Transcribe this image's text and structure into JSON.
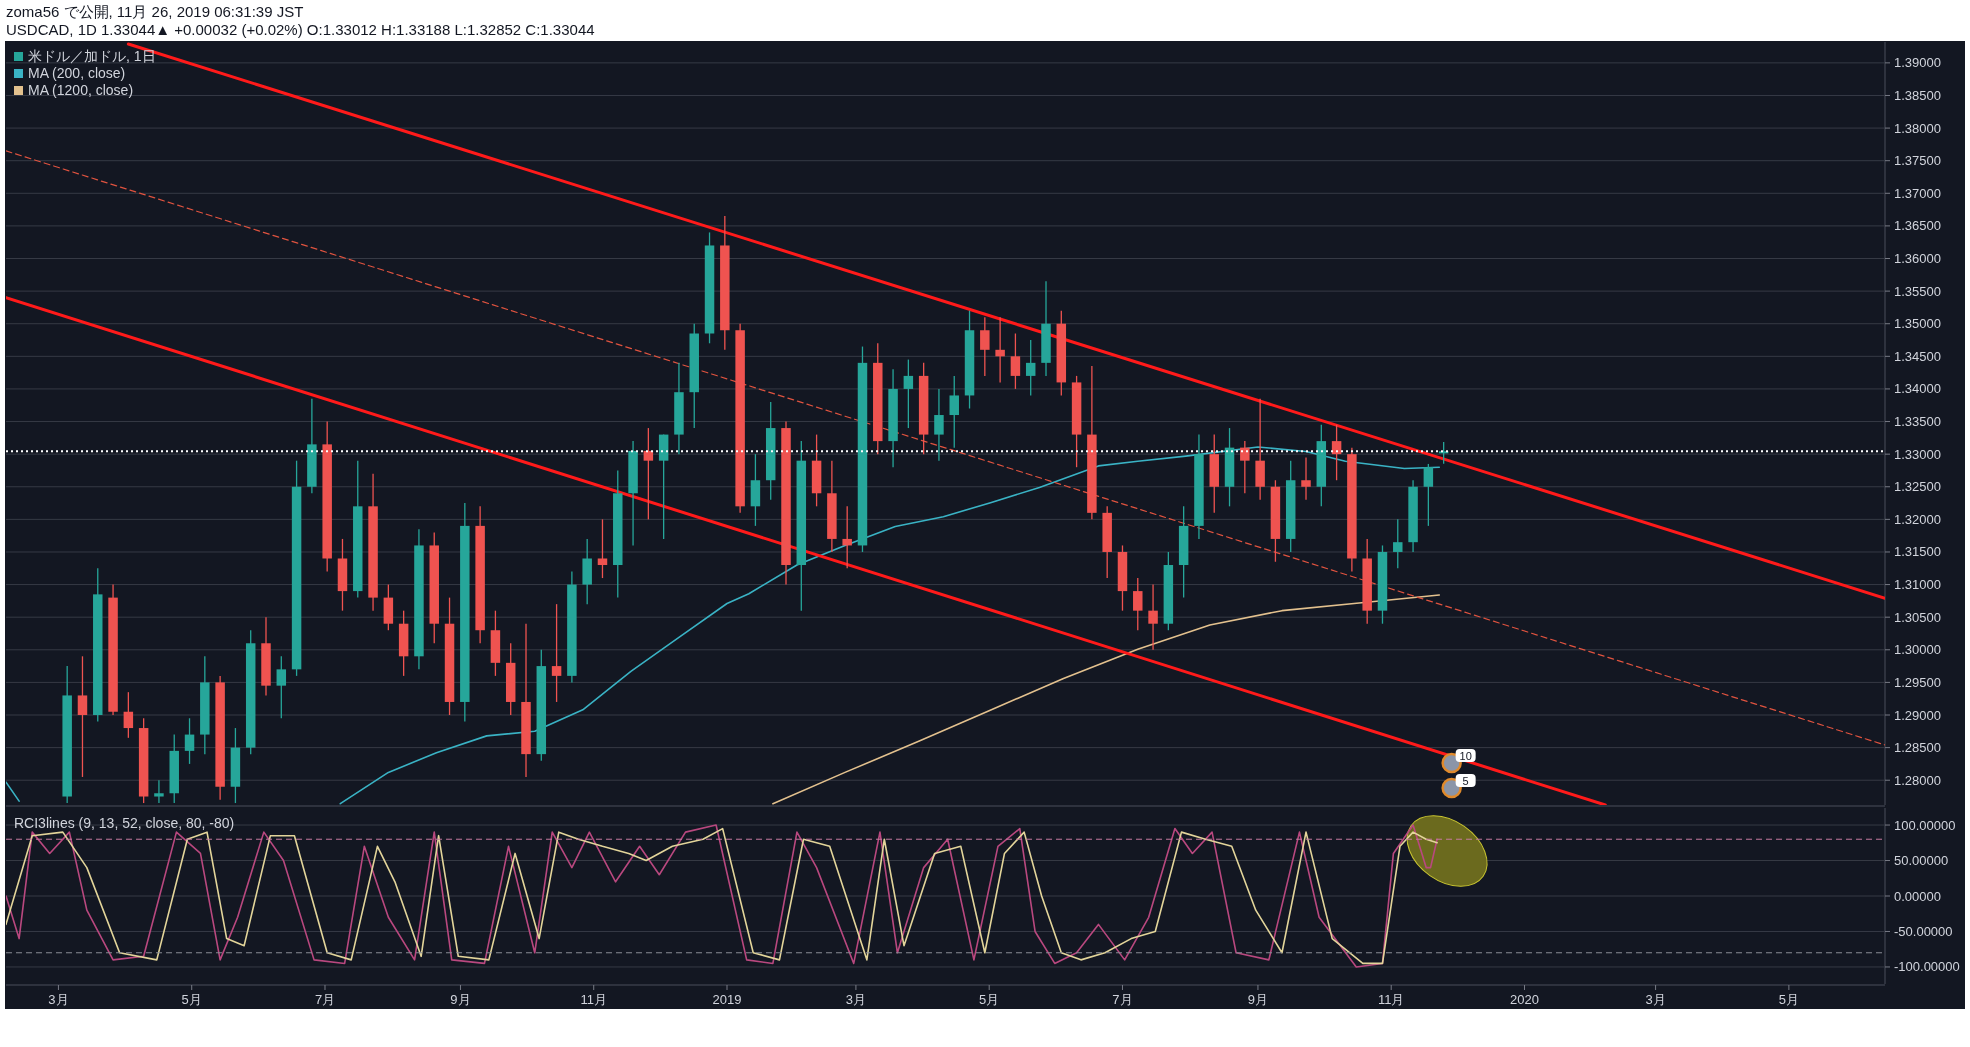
{
  "chart_data": [
    {
      "type": "candlestick",
      "title": "zoma56 で公開, 11月 26, 2019 06:31:39 JST",
      "subtitle": "USDCAD, 1D 1.33044▲ +0.00032 (+0.02%) O:1.33012 H:1.33188 L:1.32852 C:1.33044",
      "xlim": [
        "2018-02-05",
        "2020-06-14"
      ],
      "ylim": [
        1.2762,
        1.3932
      ],
      "yticks": [
        {
          "value": 1.28,
          "label": "1.28000"
        },
        {
          "value": 1.285,
          "label": "1.28500"
        },
        {
          "value": 1.29,
          "label": "1.29000"
        },
        {
          "value": 1.295,
          "label": "1.29500"
        },
        {
          "value": 1.3,
          "label": "1.30000"
        },
        {
          "value": 1.305,
          "label": "1.30500"
        },
        {
          "value": 1.31,
          "label": "1.31000"
        },
        {
          "value": 1.315,
          "label": "1.31500"
        },
        {
          "value": 1.32,
          "label": "1.32000"
        },
        {
          "value": 1.325,
          "label": "1.32500"
        },
        {
          "value": 1.33,
          "label": "1.33000"
        },
        {
          "value": 1.335,
          "label": "1.33500"
        },
        {
          "value": 1.34,
          "label": "1.34000"
        },
        {
          "value": 1.345,
          "label": "1.34500"
        },
        {
          "value": 1.35,
          "label": "1.35000"
        },
        {
          "value": 1.355,
          "label": "1.35500"
        },
        {
          "value": 1.36,
          "label": "1.36000"
        },
        {
          "value": 1.365,
          "label": "1.36500"
        },
        {
          "value": 1.37,
          "label": "1.37000"
        },
        {
          "value": 1.375,
          "label": "1.37500"
        },
        {
          "value": 1.38,
          "label": "1.38000"
        },
        {
          "value": 1.385,
          "label": "1.38500"
        },
        {
          "value": 1.39,
          "label": "1.39000"
        }
      ],
      "tick_labels": "y",
      "grid": "y",
      "legend": "top left",
      "ref_lines": [
        {
          "axis": "y",
          "value": 1.33044,
          "color": "#ffffff",
          "line_style": "dotted"
        }
      ],
      "annotations": [
        "10",
        "5"
      ],
      "series": [
        {
          "name": "米ドル／加ドル, 1日",
          "x": [
            "2018-03-05",
            "2018-03-12",
            "2018-03-19",
            "2018-03-26",
            "2018-04-02",
            "2018-04-09",
            "2018-04-16",
            "2018-04-23",
            "2018-04-30",
            "2018-05-07",
            "2018-05-14",
            "2018-05-21",
            "2018-05-28",
            "2018-06-04",
            "2018-06-11",
            "2018-06-18",
            "2018-06-25",
            "2018-07-02",
            "2018-07-09",
            "2018-07-16",
            "2018-07-23",
            "2018-07-30",
            "2018-08-06",
            "2018-08-13",
            "2018-08-20",
            "2018-08-27",
            "2018-09-03",
            "2018-09-10",
            "2018-09-17",
            "2018-09-24",
            "2018-10-01",
            "2018-10-08",
            "2018-10-15",
            "2018-10-22",
            "2018-10-29",
            "2018-11-05",
            "2018-11-12",
            "2018-11-19",
            "2018-11-26",
            "2018-12-03",
            "2018-12-10",
            "2018-12-17",
            "2018-12-24",
            "2018-12-31",
            "2019-01-07",
            "2019-01-14",
            "2019-01-21",
            "2019-01-28",
            "2019-02-04",
            "2019-02-11",
            "2019-02-18",
            "2019-02-25",
            "2019-03-04",
            "2019-03-11",
            "2019-03-18",
            "2019-03-25",
            "2019-04-01",
            "2019-04-08",
            "2019-04-15",
            "2019-04-22",
            "2019-04-29",
            "2019-05-06",
            "2019-05-13",
            "2019-05-20",
            "2019-05-27",
            "2019-06-03",
            "2019-06-10",
            "2019-06-17",
            "2019-06-24",
            "2019-07-01",
            "2019-07-08",
            "2019-07-15",
            "2019-07-22",
            "2019-07-29",
            "2019-08-05",
            "2019-08-12",
            "2019-08-19",
            "2019-08-26",
            "2019-09-02",
            "2019-09-09",
            "2019-09-16",
            "2019-09-23",
            "2019-09-30",
            "2019-10-07",
            "2019-10-14",
            "2019-10-21",
            "2019-10-28",
            "2019-11-04",
            "2019-11-11",
            "2019-11-18",
            "2019-11-25"
          ],
          "ohlc": [
            [
              1.2775,
              1.2975,
              1.2765,
              1.293
            ],
            [
              1.293,
              1.299,
              1.2805,
              1.29
            ],
            [
              1.29,
              1.3125,
              1.289,
              1.3085
            ],
            [
              1.308,
              1.31,
              1.29,
              1.2905
            ],
            [
              1.2905,
              1.2935,
              1.2865,
              1.288
            ],
            [
              1.288,
              1.2895,
              1.2765,
              1.2775
            ],
            [
              1.2775,
              1.28,
              1.2765,
              1.278
            ],
            [
              1.278,
              1.287,
              1.2765,
              1.2845
            ],
            [
              1.2845,
              1.2895,
              1.2825,
              1.287
            ],
            [
              1.287,
              1.299,
              1.284,
              1.295
            ],
            [
              1.295,
              1.296,
              1.277,
              1.279
            ],
            [
              1.279,
              1.288,
              1.2765,
              1.285
            ],
            [
              1.285,
              1.303,
              1.284,
              1.301
            ],
            [
              1.301,
              1.305,
              1.293,
              1.2945
            ],
            [
              1.2945,
              1.299,
              1.2895,
              1.297
            ],
            [
              1.297,
              1.329,
              1.296,
              1.325
            ],
            [
              1.325,
              1.3385,
              1.324,
              1.3315
            ],
            [
              1.3315,
              1.335,
              1.312,
              1.314
            ],
            [
              1.314,
              1.317,
              1.306,
              1.309
            ],
            [
              1.309,
              1.329,
              1.308,
              1.322
            ],
            [
              1.322,
              1.327,
              1.306,
              1.308
            ],
            [
              1.308,
              1.31,
              1.303,
              1.304
            ],
            [
              1.304,
              1.306,
              1.296,
              1.299
            ],
            [
              1.299,
              1.3185,
              1.297,
              1.316
            ],
            [
              1.316,
              1.318,
              1.301,
              1.304
            ],
            [
              1.304,
              1.308,
              1.29,
              1.292
            ],
            [
              1.292,
              1.3225,
              1.289,
              1.319
            ],
            [
              1.319,
              1.322,
              1.301,
              1.303
            ],
            [
              1.303,
              1.306,
              1.296,
              1.298
            ],
            [
              1.298,
              1.301,
              1.29,
              1.292
            ],
            [
              1.292,
              1.304,
              1.2805,
              1.284
            ],
            [
              1.284,
              1.3,
              1.283,
              1.2975
            ],
            [
              1.2975,
              1.307,
              1.292,
              1.296
            ],
            [
              1.296,
              1.312,
              1.295,
              1.31
            ],
            [
              1.31,
              1.317,
              1.307,
              1.314
            ],
            [
              1.314,
              1.32,
              1.311,
              1.313
            ],
            [
              1.313,
              1.3275,
              1.308,
              1.324
            ],
            [
              1.324,
              1.332,
              1.316,
              1.3305
            ],
            [
              1.3305,
              1.334,
              1.32,
              1.329
            ],
            [
              1.329,
              1.333,
              1.317,
              1.333
            ],
            [
              1.333,
              1.344,
              1.33,
              1.3395
            ],
            [
              1.3395,
              1.35,
              1.334,
              1.3485
            ],
            [
              1.3485,
              1.364,
              1.347,
              1.362
            ],
            [
              1.362,
              1.3665,
              1.346,
              1.349
            ],
            [
              1.349,
              1.35,
              1.321,
              1.322
            ],
            [
              1.322,
              1.33,
              1.319,
              1.326
            ],
            [
              1.326,
              1.338,
              1.323,
              1.334
            ],
            [
              1.334,
              1.335,
              1.31,
              1.313
            ],
            [
              1.313,
              1.332,
              1.306,
              1.329
            ],
            [
              1.329,
              1.333,
              1.322,
              1.324
            ],
            [
              1.324,
              1.329,
              1.315,
              1.317
            ],
            [
              1.317,
              1.322,
              1.3125,
              1.316
            ],
            [
              1.316,
              1.3465,
              1.315,
              1.344
            ],
            [
              1.344,
              1.347,
              1.33,
              1.332
            ],
            [
              1.332,
              1.343,
              1.328,
              1.34
            ],
            [
              1.34,
              1.3445,
              1.334,
              1.342
            ],
            [
              1.342,
              1.344,
              1.33,
              1.333
            ],
            [
              1.333,
              1.34,
              1.329,
              1.336
            ],
            [
              1.336,
              1.342,
              1.331,
              1.339
            ],
            [
              1.339,
              1.352,
              1.337,
              1.349
            ],
            [
              1.349,
              1.351,
              1.342,
              1.346
            ],
            [
              1.346,
              1.351,
              1.341,
              1.345
            ],
            [
              1.345,
              1.3485,
              1.34,
              1.342
            ],
            [
              1.342,
              1.3475,
              1.339,
              1.344
            ],
            [
              1.344,
              1.3565,
              1.342,
              1.35
            ],
            [
              1.35,
              1.352,
              1.339,
              1.341
            ],
            [
              1.341,
              1.342,
              1.328,
              1.333
            ],
            [
              1.333,
              1.3435,
              1.32,
              1.321
            ],
            [
              1.321,
              1.322,
              1.311,
              1.315
            ],
            [
              1.315,
              1.316,
              1.306,
              1.309
            ],
            [
              1.309,
              1.311,
              1.303,
              1.306
            ],
            [
              1.306,
              1.31,
              1.3,
              1.304
            ],
            [
              1.304,
              1.315,
              1.303,
              1.313
            ],
            [
              1.313,
              1.322,
              1.308,
              1.319
            ],
            [
              1.319,
              1.333,
              1.317,
              1.33
            ],
            [
              1.33,
              1.333,
              1.321,
              1.325
            ],
            [
              1.325,
              1.334,
              1.322,
              1.331
            ],
            [
              1.331,
              1.332,
              1.324,
              1.329
            ],
            [
              1.329,
              1.3385,
              1.323,
              1.325
            ],
            [
              1.325,
              1.326,
              1.3135,
              1.317
            ],
            [
              1.317,
              1.329,
              1.315,
              1.326
            ],
            [
              1.326,
              1.3295,
              1.323,
              1.325
            ],
            [
              1.325,
              1.3345,
              1.322,
              1.332
            ],
            [
              1.332,
              1.3345,
              1.326,
              1.33
            ],
            [
              1.33,
              1.331,
              1.312,
              1.314
            ],
            [
              1.314,
              1.317,
              1.304,
              1.306
            ],
            [
              1.306,
              1.316,
              1.304,
              1.315
            ],
            [
              1.315,
              1.32,
              1.3125,
              1.3165
            ],
            [
              1.3165,
              1.326,
              1.315,
              1.325
            ],
            [
              1.325,
              1.3285,
              1.319,
              1.328
            ],
            [
              1.33012,
              1.33188,
              1.32852,
              1.33044
            ]
          ],
          "colors": [
            "#26a69a",
            "#ef5350",
            "#26a69a",
            "#ef5350",
            "#ef5350",
            "#ef5350",
            "#26a69a",
            "#26a69a",
            "#26a69a",
            "#26a69a",
            "#ef5350",
            "#26a69a",
            "#26a69a",
            "#ef5350",
            "#26a69a",
            "#26a69a",
            "#26a69a",
            "#ef5350",
            "#ef5350",
            "#26a69a",
            "#ef5350",
            "#ef5350",
            "#ef5350",
            "#26a69a",
            "#ef5350",
            "#ef5350",
            "#26a69a",
            "#ef5350",
            "#ef5350",
            "#ef5350",
            "#ef5350",
            "#26a69a",
            "#ef5350",
            "#26a69a",
            "#26a69a",
            "#ef5350",
            "#26a69a",
            "#26a69a",
            "#ef5350",
            "#26a69a",
            "#26a69a",
            "#26a69a",
            "#26a69a",
            "#ef5350",
            "#ef5350",
            "#26a69a",
            "#26a69a",
            "#ef5350",
            "#26a69a",
            "#ef5350",
            "#ef5350",
            "#ef5350",
            "#26a69a",
            "#ef5350",
            "#26a69a",
            "#26a69a",
            "#ef5350",
            "#26a69a",
            "#26a69a",
            "#26a69a",
            "#ef5350",
            "#ef5350",
            "#ef5350",
            "#26a69a",
            "#26a69a",
            "#ef5350",
            "#ef5350",
            "#ef5350",
            "#ef5350",
            "#ef5350",
            "#ef5350",
            "#ef5350",
            "#26a69a",
            "#26a69a",
            "#26a69a",
            "#ef5350",
            "#26a69a",
            "#ef5350",
            "#ef5350",
            "#ef5350",
            "#26a69a",
            "#ef5350",
            "#26a69a",
            "#ef5350",
            "#ef5350",
            "#ef5350",
            "#26a69a",
            "#26a69a",
            "#26a69a",
            "#26a69a",
            "#26a69a"
          ]
        },
        {
          "name": "MA (200, close)",
          "type": "line",
          "color": "#3ab3c5",
          "x": [
            "2018-07-08",
            "2018-07-30",
            "2018-08-21",
            "2018-09-13",
            "2018-10-05",
            "2018-10-27",
            "2018-11-18",
            "2018-12-10",
            "2019-01-01",
            "2019-01-11",
            "2019-02-02",
            "2019-02-24",
            "2019-03-19",
            "2019-04-10",
            "2019-05-02",
            "2019-05-24",
            "2019-06-20",
            "2019-07-08",
            "2019-07-30",
            "2019-09-01",
            "2019-09-23",
            "2019-10-11",
            "2019-11-07",
            "2019-11-23"
          ],
          "values": [
            1.2764,
            1.2812,
            1.2842,
            1.2868,
            1.2875,
            1.2908,
            1.2967,
            1.3019,
            1.3071,
            1.3086,
            1.313,
            1.316,
            1.3189,
            1.3204,
            1.3226,
            1.3249,
            1.3282,
            1.3289,
            1.3297,
            1.3311,
            1.3304,
            1.3289,
            1.3278,
            1.328
          ]
        },
        {
          "name": "MA (1200, close)",
          "type": "line",
          "color": "#e3c18e",
          "x": [
            "2019-01-22",
            "2019-02-24",
            "2019-03-30",
            "2019-05-02",
            "2019-06-04",
            "2019-07-08",
            "2019-08-10",
            "2019-09-12",
            "2019-10-15",
            "2019-11-23"
          ],
          "values": [
            1.2764,
            1.2812,
            1.286,
            1.2908,
            1.2956,
            1.3001,
            1.3038,
            1.306,
            1.3071,
            1.3084
          ]
        },
        {
          "type": "line",
          "color": "#ff1a1a",
          "x": [
            "2018-04-02",
            "2020-06-14"
          ],
          "values": [
            1.3929,
            1.3079
          ]
        },
        {
          "type": "line",
          "color": "#3ab3c5",
          "x": [
            "2018-02-05",
            "2018-02-11"
          ],
          "values": [
            1.2797,
            1.2768
          ]
        },
        {
          "type": "line",
          "color": "#ff1a1a",
          "x": [
            "2018-02-05",
            "2020-02-07"
          ],
          "values": [
            1.354,
            1.2762
          ]
        },
        {
          "type": "line",
          "color": "#e0533f",
          "line_style": "dashed",
          "x": [
            "2018-02-05",
            "2020-06-14"
          ],
          "values": [
            1.3765,
            1.2854
          ]
        }
      ]
    },
    {
      "type": "line",
      "title": "RCI3lines (9, 13, 52, close, 80, -80)",
      "xlim": [
        "2018-02-05",
        "2020-06-14"
      ],
      "ylim": [
        -124,
        124
      ],
      "xticks": [
        {
          "value": "2018-03-01",
          "label": "3月"
        },
        {
          "value": "2018-05-01",
          "label": "5月"
        },
        {
          "value": "2018-07-01",
          "label": "7月"
        },
        {
          "value": "2018-09-01",
          "label": "9月"
        },
        {
          "value": "2018-11-01",
          "label": "11月"
        },
        {
          "value": "2019-01-01",
          "label": "2019"
        },
        {
          "value": "2019-03-01",
          "label": "3月"
        },
        {
          "value": "2019-05-01",
          "label": "5月"
        },
        {
          "value": "2019-07-01",
          "label": "7月"
        },
        {
          "value": "2019-09-01",
          "label": "9月"
        },
        {
          "value": "2019-11-01",
          "label": "11月"
        },
        {
          "value": "2020-01-01",
          "label": "2020"
        },
        {
          "value": "2020-03-01",
          "label": "3月"
        },
        {
          "value": "2020-05-01",
          "label": "5月"
        }
      ],
      "yticks": [
        {
          "value": 100,
          "label": "100.00000"
        },
        {
          "value": 50,
          "label": "50.00000"
        },
        {
          "value": 0,
          "label": "0.00000"
        },
        {
          "value": -50,
          "label": "-50.00000"
        },
        {
          "value": -100,
          "label": "-100.00000"
        }
      ],
      "grid": "y",
      "ref_lines": [
        {
          "axis": "y",
          "value": 80,
          "color": "#c77aa0",
          "line_style": "dashed"
        },
        {
          "axis": "y",
          "value": -80,
          "color": "#8a8d96",
          "line_style": "dashed"
        }
      ],
      "series": [
        {
          "color": "#b9487f",
          "x": [
            "2018-02-05",
            "2018-02-11",
            "2018-02-17",
            "2018-02-25",
            "2018-03-06",
            "2018-03-14",
            "2018-03-26",
            "2018-04-09",
            "2018-04-24",
            "2018-05-05",
            "2018-05-14",
            "2018-05-22",
            "2018-06-03",
            "2018-06-12",
            "2018-06-26",
            "2018-07-10",
            "2018-07-19",
            "2018-07-30",
            "2018-08-11",
            "2018-08-20",
            "2018-08-28",
            "2018-09-12",
            "2018-09-23",
            "2018-10-05",
            "2018-10-13",
            "2018-10-22",
            "2018-10-30",
            "2018-11-11",
            "2018-11-22",
            "2018-12-01",
            "2018-12-13",
            "2018-12-27",
            "2019-01-10",
            "2019-01-22",
            "2019-02-02",
            "2019-02-11",
            "2019-02-28",
            "2019-03-12",
            "2019-03-20",
            "2019-04-01",
            "2019-04-12",
            "2019-04-24",
            "2019-05-05",
            "2019-05-15",
            "2019-05-22",
            "2019-05-31",
            "2019-06-10",
            "2019-06-20",
            "2019-07-02",
            "2019-07-13",
            "2019-07-25",
            "2019-08-02",
            "2019-08-11",
            "2019-08-22",
            "2019-09-06",
            "2019-09-20",
            "2019-09-29",
            "2019-10-16",
            "2019-10-28",
            "2019-11-02",
            "2019-11-11",
            "2019-11-17",
            "2019-11-19",
            "2019-11-22"
          ],
          "values": [
            0,
            -60,
            90,
            60,
            90,
            -20,
            -90,
            -85,
            90,
            60,
            -90,
            -30,
            90,
            50,
            -90,
            -95,
            70,
            -30,
            -90,
            90,
            -90,
            -95,
            70,
            -80,
            90,
            40,
            90,
            20,
            70,
            30,
            90,
            100,
            -90,
            -95,
            90,
            40,
            -95,
            90,
            -80,
            40,
            80,
            -90,
            70,
            95,
            -50,
            -95,
            -80,
            -40,
            -90,
            -30,
            95,
            60,
            90,
            -80,
            -90,
            90,
            -30,
            -100,
            -95,
            60,
            100,
            40,
            40,
            80
          ]
        },
        {
          "color": "#e3d59a",
          "x": [
            "2018-02-05",
            "2018-02-17",
            "2018-03-03",
            "2018-03-14",
            "2018-03-29",
            "2018-04-15",
            "2018-04-29",
            "2018-05-08",
            "2018-05-17",
            "2018-05-25",
            "2018-06-06",
            "2018-06-17",
            "2018-07-02",
            "2018-07-13",
            "2018-07-25",
            "2018-08-02",
            "2018-08-14",
            "2018-08-22",
            "2018-08-31",
            "2018-09-14",
            "2018-09-26",
            "2018-10-07",
            "2018-10-16",
            "2018-10-25",
            "2018-11-05",
            "2018-11-17",
            "2018-11-25",
            "2018-12-07",
            "2018-12-21",
            "2018-12-30",
            "2019-01-13",
            "2019-01-25",
            "2019-02-05",
            "2019-02-17",
            "2019-03-06",
            "2019-03-14",
            "2019-03-23",
            "2019-04-06",
            "2019-04-18",
            "2019-04-29",
            "2019-05-08",
            "2019-05-17",
            "2019-05-25",
            "2019-06-03",
            "2019-06-12",
            "2019-06-23",
            "2019-07-05",
            "2019-07-16",
            "2019-07-28",
            "2019-08-08",
            "2019-08-20",
            "2019-08-31",
            "2019-09-12",
            "2019-09-23",
            "2019-10-05",
            "2019-10-19",
            "2019-10-28",
            "2019-11-05",
            "2019-11-11",
            "2019-11-17",
            "2019-11-22"
          ],
          "values": [
            -40,
            85,
            90,
            40,
            -80,
            -90,
            80,
            90,
            -60,
            -70,
            85,
            85,
            -80,
            -90,
            70,
            20,
            -85,
            85,
            -85,
            -90,
            60,
            -60,
            90,
            80,
            70,
            60,
            50,
            70,
            80,
            95,
            -80,
            -90,
            80,
            70,
            -90,
            80,
            -70,
            60,
            70,
            -80,
            60,
            90,
            0,
            -80,
            -90,
            -80,
            -60,
            -50,
            90,
            80,
            70,
            -20,
            -80,
            90,
            -60,
            -95,
            -95,
            70,
            90,
            80,
            75
          ]
        }
      ]
    }
  ]
}
